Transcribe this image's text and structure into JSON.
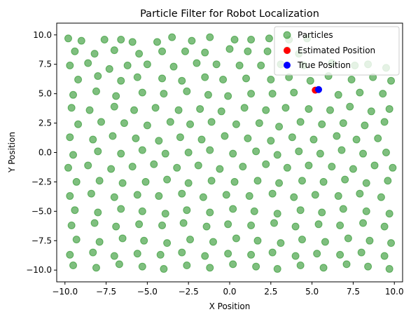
{
  "chart_data": {
    "type": "scatter",
    "title": "Particle Filter for Robot Localization",
    "xlabel": "X Position",
    "ylabel": "Y Position",
    "xlim": [
      -10.5,
      10.5
    ],
    "ylim": [
      -11.0,
      11.0
    ],
    "xticks": [
      -10.0,
      -7.5,
      -5.0,
      -2.5,
      0.0,
      2.5,
      5.0,
      7.5,
      10.0
    ],
    "yticks": [
      -10.0,
      -7.5,
      -5.0,
      -2.5,
      0.0,
      2.5,
      5.0,
      7.5,
      10.0
    ],
    "xtick_labels": [
      "−10.0",
      "−7.5",
      "−5.0",
      "−2.5",
      "0.0",
      "2.5",
      "5.0",
      "7.5",
      "10.0"
    ],
    "ytick_labels": [
      "−10.0",
      "−7.5",
      "−5.0",
      "−2.5",
      "0.0",
      "2.5",
      "5.0",
      "7.5",
      "10.0"
    ],
    "grid": false,
    "legend_position": "top-right",
    "series": [
      {
        "name": "Particles",
        "color": "#008000",
        "alpha": 0.5,
        "note_count": 1000,
        "points": [
          [
            -9.8,
            9.7
          ],
          [
            -9.0,
            9.5
          ],
          [
            -7.6,
            9.6
          ],
          [
            -6.6,
            9.6
          ],
          [
            -5.9,
            9.4
          ],
          [
            -4.4,
            9.4
          ],
          [
            -3.5,
            9.8
          ],
          [
            -2.3,
            9.5
          ],
          [
            -1.2,
            9.8
          ],
          [
            0.3,
            9.6
          ],
          [
            1.3,
            9.6
          ],
          [
            2.4,
            9.7
          ],
          [
            3.6,
            9.6
          ],
          [
            4.7,
            9.7
          ],
          [
            -9.4,
            8.6
          ],
          [
            -8.2,
            8.4
          ],
          [
            -7.0,
            8.7
          ],
          [
            -5.5,
            8.4
          ],
          [
            -4.1,
            8.6
          ],
          [
            -2.7,
            8.6
          ],
          [
            -1.5,
            8.5
          ],
          [
            0.0,
            8.8
          ],
          [
            1.1,
            8.6
          ],
          [
            2.3,
            8.6
          ],
          [
            3.5,
            8.7
          ],
          [
            4.2,
            8.4
          ],
          [
            -9.7,
            7.4
          ],
          [
            -8.6,
            7.6
          ],
          [
            -7.3,
            7.1
          ],
          [
            -6.2,
            7.4
          ],
          [
            -5.0,
            7.5
          ],
          [
            -3.4,
            7.3
          ],
          [
            -2.0,
            7.6
          ],
          [
            -0.8,
            7.5
          ],
          [
            0.6,
            7.4
          ],
          [
            1.9,
            7.4
          ],
          [
            3.1,
            7.5
          ],
          [
            4.5,
            7.4
          ],
          [
            6.2,
            7.6
          ],
          [
            7.6,
            7.4
          ],
          [
            8.4,
            7.5
          ],
          [
            9.5,
            7.2
          ],
          [
            -9.2,
            6.2
          ],
          [
            -8.0,
            6.5
          ],
          [
            -6.6,
            6.1
          ],
          [
            -5.6,
            6.4
          ],
          [
            -4.1,
            6.3
          ],
          [
            -2.9,
            6.1
          ],
          [
            -1.5,
            6.4
          ],
          [
            -0.4,
            6.2
          ],
          [
            1.0,
            6.3
          ],
          [
            2.5,
            6.2
          ],
          [
            3.6,
            6.4
          ],
          [
            4.9,
            6.1
          ],
          [
            6.0,
            6.5
          ],
          [
            7.4,
            6.2
          ],
          [
            8.7,
            6.4
          ],
          [
            9.8,
            6.1
          ],
          [
            -9.5,
            4.9
          ],
          [
            -8.1,
            5.2
          ],
          [
            -6.9,
            4.8
          ],
          [
            -5.3,
            5.1
          ],
          [
            -4.0,
            5.0
          ],
          [
            -2.6,
            5.2
          ],
          [
            -1.3,
            4.9
          ],
          [
            -0.1,
            4.8
          ],
          [
            1.3,
            5.0
          ],
          [
            2.6,
            5.0
          ],
          [
            3.9,
            5.1
          ],
          [
            6.6,
            4.9
          ],
          [
            7.9,
            5.1
          ],
          [
            9.3,
            5.0
          ],
          [
            -9.6,
            3.8
          ],
          [
            -8.5,
            3.6
          ],
          [
            -7.0,
            3.9
          ],
          [
            -5.8,
            3.6
          ],
          [
            -4.5,
            3.8
          ],
          [
            -3.1,
            3.6
          ],
          [
            -1.8,
            3.7
          ],
          [
            -0.5,
            3.5
          ],
          [
            0.9,
            3.8
          ],
          [
            2.2,
            3.6
          ],
          [
            3.4,
            3.8
          ],
          [
            4.8,
            3.7
          ],
          [
            6.1,
            3.6
          ],
          [
            7.3,
            3.9
          ],
          [
            8.6,
            3.5
          ],
          [
            9.7,
            3.7
          ],
          [
            -9.2,
            2.4
          ],
          [
            -7.8,
            2.6
          ],
          [
            -6.4,
            2.5
          ],
          [
            -5.0,
            2.3
          ],
          [
            -3.6,
            2.6
          ],
          [
            -2.4,
            2.4
          ],
          [
            -1.1,
            2.6
          ],
          [
            0.4,
            2.4
          ],
          [
            1.8,
            2.5
          ],
          [
            3.0,
            2.2
          ],
          [
            4.3,
            2.6
          ],
          [
            5.6,
            2.4
          ],
          [
            6.9,
            2.5
          ],
          [
            8.2,
            2.3
          ],
          [
            9.4,
            2.6
          ],
          [
            -9.7,
            1.3
          ],
          [
            -8.3,
            1.1
          ],
          [
            -7.1,
            1.4
          ],
          [
            -5.7,
            1.2
          ],
          [
            -4.3,
            1.0
          ],
          [
            -3.0,
            1.3
          ],
          [
            -1.7,
            1.1
          ],
          [
            -0.3,
            1.4
          ],
          [
            1.1,
            1.2
          ],
          [
            2.5,
            1.0
          ],
          [
            3.8,
            1.3
          ],
          [
            5.1,
            1.1
          ],
          [
            6.5,
            1.4
          ],
          [
            7.7,
            1.1
          ],
          [
            9.0,
            1.2
          ],
          [
            -9.5,
            -0.2
          ],
          [
            -8.0,
            0.1
          ],
          [
            -6.6,
            -0.1
          ],
          [
            -5.3,
            0.2
          ],
          [
            -3.9,
            -0.1
          ],
          [
            -2.5,
            0.0
          ],
          [
            -1.2,
            0.2
          ],
          [
            0.2,
            -0.1
          ],
          [
            1.6,
            0.1
          ],
          [
            2.9,
            -0.2
          ],
          [
            4.2,
            0.1
          ],
          [
            5.5,
            -0.1
          ],
          [
            6.8,
            0.2
          ],
          [
            8.1,
            -0.1
          ],
          [
            9.5,
            0.0
          ],
          [
            -9.8,
            -1.3
          ],
          [
            -8.6,
            -1.1
          ],
          [
            -7.2,
            -1.4
          ],
          [
            -5.9,
            -1.2
          ],
          [
            -4.6,
            -1.0
          ],
          [
            -3.2,
            -1.3
          ],
          [
            -1.9,
            -1.1
          ],
          [
            -0.6,
            -1.4
          ],
          [
            0.8,
            -1.2
          ],
          [
            2.2,
            -1.0
          ],
          [
            3.5,
            -1.3
          ],
          [
            4.8,
            -1.1
          ],
          [
            6.2,
            -1.2
          ],
          [
            7.5,
            -1.4
          ],
          [
            8.8,
            -1.1
          ],
          [
            9.9,
            -1.3
          ],
          [
            -9.3,
            -2.5
          ],
          [
            -7.9,
            -2.4
          ],
          [
            -6.5,
            -2.6
          ],
          [
            -5.1,
            -2.5
          ],
          [
            -3.8,
            -2.3
          ],
          [
            -2.5,
            -2.6
          ],
          [
            -1.1,
            -2.4
          ],
          [
            0.3,
            -2.5
          ],
          [
            1.7,
            -2.4
          ],
          [
            3.0,
            -2.6
          ],
          [
            4.4,
            -2.4
          ],
          [
            5.7,
            -2.5
          ],
          [
            7.0,
            -2.3
          ],
          [
            8.3,
            -2.6
          ],
          [
            9.6,
            -2.4
          ],
          [
            -9.7,
            -3.7
          ],
          [
            -8.4,
            -3.5
          ],
          [
            -7.0,
            -3.8
          ],
          [
            -5.6,
            -3.6
          ],
          [
            -4.3,
            -3.7
          ],
          [
            -2.9,
            -3.5
          ],
          [
            -1.6,
            -3.8
          ],
          [
            -0.2,
            -3.6
          ],
          [
            1.2,
            -3.7
          ],
          [
            2.6,
            -3.5
          ],
          [
            3.9,
            -3.8
          ],
          [
            5.2,
            -3.6
          ],
          [
            6.6,
            -3.7
          ],
          [
            7.9,
            -3.5
          ],
          [
            9.2,
            -3.8
          ],
          [
            -9.4,
            -4.9
          ],
          [
            -8.0,
            -5.1
          ],
          [
            -6.6,
            -4.8
          ],
          [
            -5.3,
            -5.0
          ],
          [
            -3.9,
            -5.2
          ],
          [
            -2.6,
            -4.9
          ],
          [
            -1.2,
            -5.1
          ],
          [
            0.2,
            -4.8
          ],
          [
            1.5,
            -5.0
          ],
          [
            2.9,
            -5.2
          ],
          [
            4.3,
            -4.9
          ],
          [
            5.6,
            -5.1
          ],
          [
            6.9,
            -4.8
          ],
          [
            8.3,
            -5.0
          ],
          [
            9.7,
            -5.2
          ],
          [
            -9.6,
            -6.2
          ],
          [
            -8.2,
            -6.0
          ],
          [
            -6.9,
            -6.3
          ],
          [
            -5.5,
            -6.1
          ],
          [
            -4.1,
            -6.2
          ],
          [
            -2.8,
            -6.0
          ],
          [
            -1.4,
            -6.3
          ],
          [
            -0.1,
            -6.1
          ],
          [
            1.3,
            -6.2
          ],
          [
            2.7,
            -6.0
          ],
          [
            4.0,
            -6.3
          ],
          [
            5.4,
            -6.1
          ],
          [
            6.7,
            -6.2
          ],
          [
            8.1,
            -6.0
          ],
          [
            9.4,
            -6.3
          ],
          [
            -9.3,
            -7.4
          ],
          [
            -7.9,
            -7.6
          ],
          [
            -6.5,
            -7.3
          ],
          [
            -5.2,
            -7.5
          ],
          [
            -3.8,
            -7.7
          ],
          [
            -2.4,
            -7.4
          ],
          [
            -1.0,
            -7.6
          ],
          [
            0.4,
            -7.3
          ],
          [
            1.7,
            -7.5
          ],
          [
            3.1,
            -7.7
          ],
          [
            4.4,
            -7.4
          ],
          [
            5.8,
            -7.6
          ],
          [
            7.2,
            -7.3
          ],
          [
            8.5,
            -7.5
          ],
          [
            9.8,
            -7.7
          ],
          [
            -9.7,
            -8.7
          ],
          [
            -8.3,
            -8.5
          ],
          [
            -7.0,
            -8.8
          ],
          [
            -5.6,
            -8.6
          ],
          [
            -4.2,
            -8.7
          ],
          [
            -2.9,
            -8.5
          ],
          [
            -1.5,
            -8.8
          ],
          [
            -0.1,
            -8.6
          ],
          [
            1.3,
            -8.7
          ],
          [
            2.6,
            -8.5
          ],
          [
            4.0,
            -8.8
          ],
          [
            5.3,
            -8.6
          ],
          [
            6.7,
            -8.7
          ],
          [
            8.0,
            -8.5
          ],
          [
            9.4,
            -8.8
          ],
          [
            -9.5,
            -9.6
          ],
          [
            -8.1,
            -9.8
          ],
          [
            -6.7,
            -9.5
          ],
          [
            -5.3,
            -9.7
          ],
          [
            -4.0,
            -9.9
          ],
          [
            -2.6,
            -9.6
          ],
          [
            -1.2,
            -9.8
          ],
          [
            0.2,
            -9.5
          ],
          [
            1.6,
            -9.7
          ],
          [
            2.9,
            -9.9
          ],
          [
            4.3,
            -9.6
          ],
          [
            5.7,
            -9.8
          ],
          [
            7.1,
            -9.5
          ],
          [
            8.4,
            -9.7
          ],
          [
            9.7,
            -9.9
          ]
        ]
      },
      {
        "name": "Estimated Position",
        "color": "#ff0000",
        "points": [
          [
            5.2,
            5.3
          ]
        ]
      },
      {
        "name": "True Position",
        "color": "#0000ff",
        "points": [
          [
            5.4,
            5.35
          ]
        ]
      }
    ]
  }
}
